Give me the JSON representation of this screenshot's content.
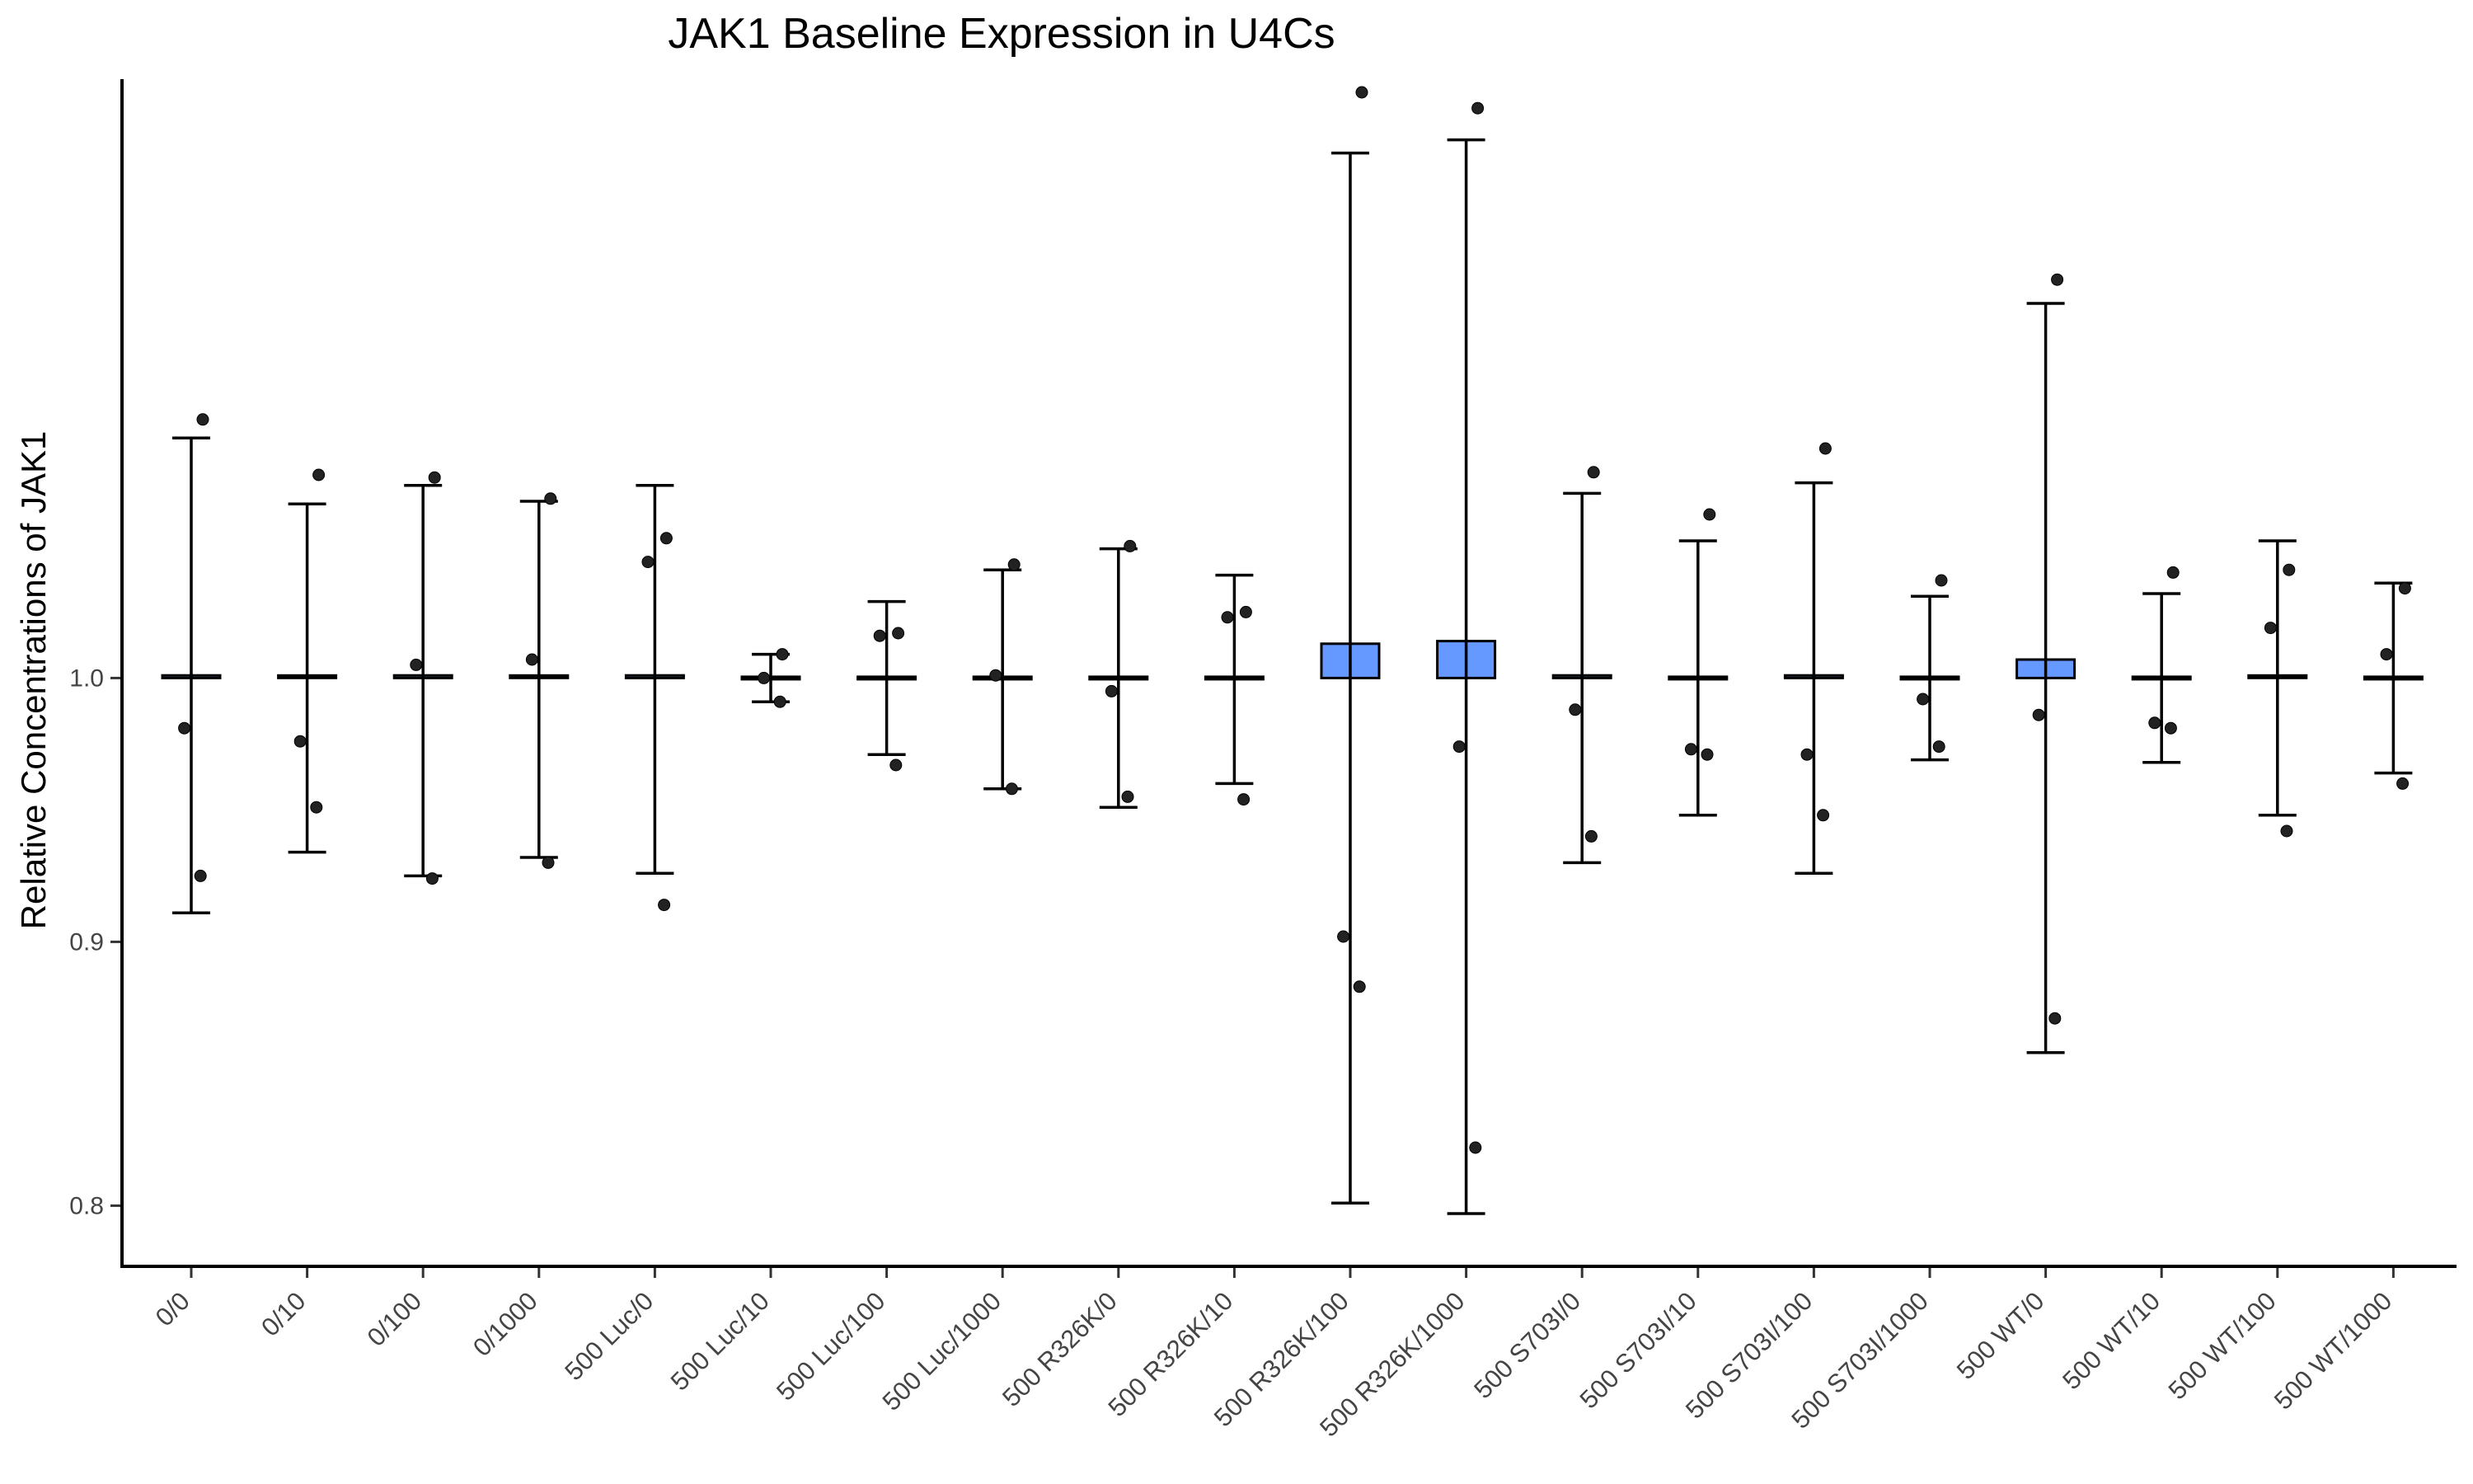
{
  "chart_data": {
    "type": "bar",
    "title": "JAK1 Baseline Expression in U4Cs",
    "xlabel": "",
    "ylabel": "Relative Concentrations of JAK1",
    "ylim": [
      0.777,
      1.227
    ],
    "yticks": [
      0.8,
      0.9,
      1.0
    ],
    "ytick_labels": [
      "0.8",
      "0.9",
      "1.0"
    ],
    "bar_color": "#6699ff",
    "grid": false,
    "categories": [
      "0/0",
      "0/10",
      "0/100",
      "0/1000",
      "500 Luc/0",
      "500 Luc/10",
      "500 Luc/100",
      "500 Luc/1000",
      "500 R326K/0",
      "500 R326K/10",
      "500 R326K/100",
      "500 R326K/1000",
      "500 S703I/0",
      "500 S703I/10",
      "500 S703I/100",
      "500 S703I/1000",
      "500 WT/0",
      "500 WT/10",
      "500 WT/100",
      "500 WT/1000"
    ],
    "series": [
      {
        "values": [
          1.001,
          1.0005,
          1.001,
          1.0005,
          1.001,
          1.0,
          1.0,
          1.0,
          1.0,
          1.0,
          1.013,
          1.014,
          1.001,
          1.0,
          1.001,
          1.0,
          1.007,
          1.0,
          1.0005,
          1.0
        ],
        "error_low": [
          0.911,
          0.934,
          0.925,
          0.932,
          0.926,
          0.991,
          0.971,
          0.958,
          0.951,
          0.96,
          0.801,
          0.797,
          0.93,
          0.948,
          0.926,
          0.969,
          0.858,
          0.968,
          0.948,
          0.964
        ],
        "error_high": [
          1.091,
          1.066,
          1.073,
          1.067,
          1.073,
          1.009,
          1.029,
          1.041,
          1.049,
          1.039,
          1.199,
          1.204,
          1.07,
          1.052,
          1.074,
          1.031,
          1.142,
          1.032,
          1.052,
          1.036
        ],
        "points": [
          [
            1.098,
            0.981,
            0.925
          ],
          [
            1.077,
            0.976,
            0.951
          ],
          [
            1.076,
            1.005,
            0.924
          ],
          [
            1.068,
            1.007,
            0.93
          ],
          [
            1.053,
            1.044,
            0.914
          ],
          [
            1.009,
            1.0,
            0.991
          ],
          [
            1.017,
            1.016,
            0.967
          ],
          [
            1.043,
            1.001,
            0.958
          ],
          [
            1.05,
            0.995,
            0.955
          ],
          [
            1.025,
            1.023,
            0.954
          ],
          [
            1.222,
            0.902,
            0.883
          ],
          [
            1.216,
            0.974,
            0.822
          ],
          [
            1.078,
            0.988,
            0.94
          ],
          [
            1.062,
            0.973,
            0.971
          ],
          [
            1.087,
            0.971,
            0.948
          ],
          [
            1.037,
            0.992,
            0.974
          ],
          [
            1.151,
            0.986,
            0.871
          ],
          [
            1.04,
            0.983,
            0.981
          ],
          [
            1.041,
            1.019,
            0.942
          ],
          [
            1.034,
            1.009,
            0.96
          ]
        ]
      }
    ]
  }
}
